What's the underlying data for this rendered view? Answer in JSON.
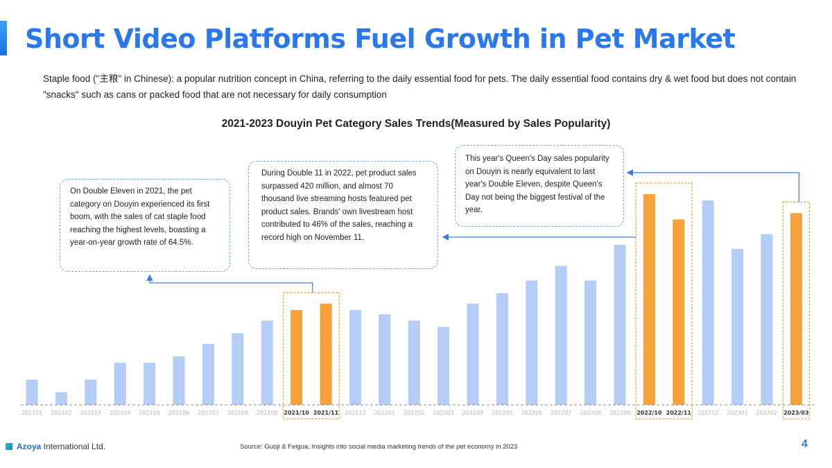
{
  "header": {
    "title": "Short Video Platforms Fuel Growth in Pet Market",
    "description": "Staple food (\"主粮\" in Chinese): a popular nutrition concept in China, referring to the daily essential food for pets. The daily essential food contains dry & wet food but does not contain \"snacks\" such as cans or packed food that are not necessary for daily consumption"
  },
  "callouts": [
    {
      "text": "On Double Eleven in 2021, the pet category on Douyin experienced its first boom, with the sales of cat staple food reaching the highest levels, boasting a year-on-year growth rate of 64.5%."
    },
    {
      "text": "During Double 11 in 2022, pet product sales surpassed 420 million, and almost 70 thousand live streaming hosts featured pet product sales. Brands' own livestream host contributed to 46% of the sales, reaching a record high on November 11."
    },
    {
      "text": "This year's Queen's Day sales popularity on Douyin is nearly equivalent to last year's Double Eleven, despite Queen's Day not being the biggest festival of the year."
    }
  ],
  "footer": {
    "logo_brand": "Azoya",
    "logo_rest": " International Ltd.",
    "source": "Source: Guoji & Feigua, Insights into social media marketing trends of the pet economy in 2023",
    "page_number": "4"
  },
  "colors": {
    "normal_bar": "#b3cdf7",
    "highlight_bar": "#f7a13a",
    "highlight_box": "#f5a03a",
    "arrow": "#3a7be0",
    "title": "#2a78ea"
  },
  "chart_data": {
    "type": "bar",
    "title": "2021-2023 Douyin Pet Category Sales Trends(Measured by Sales Popularity)",
    "xlabel": "",
    "ylabel": "",
    "ylim": [
      0,
      100
    ],
    "categories": [
      "202101",
      "202102",
      "202103",
      "202104",
      "202105",
      "202106",
      "202107",
      "202108",
      "202109",
      "2021/10",
      "2021/11",
      "202112",
      "202201",
      "202202",
      "202203",
      "202204",
      "202205",
      "202206",
      "202207",
      "202208",
      "202209",
      "2022/10",
      "2022/11",
      "202212",
      "202301",
      "202302",
      "2023/03"
    ],
    "values": [
      12,
      6,
      12,
      20,
      20,
      23,
      29,
      34,
      40,
      45,
      48,
      45,
      43,
      40,
      37,
      48,
      53,
      59,
      66,
      59,
      76,
      100,
      88,
      97,
      74,
      81,
      91
    ],
    "highlighted": [
      false,
      false,
      false,
      false,
      false,
      false,
      false,
      false,
      false,
      true,
      true,
      false,
      false,
      false,
      false,
      false,
      false,
      false,
      false,
      false,
      false,
      true,
      true,
      false,
      false,
      false,
      true
    ]
  }
}
